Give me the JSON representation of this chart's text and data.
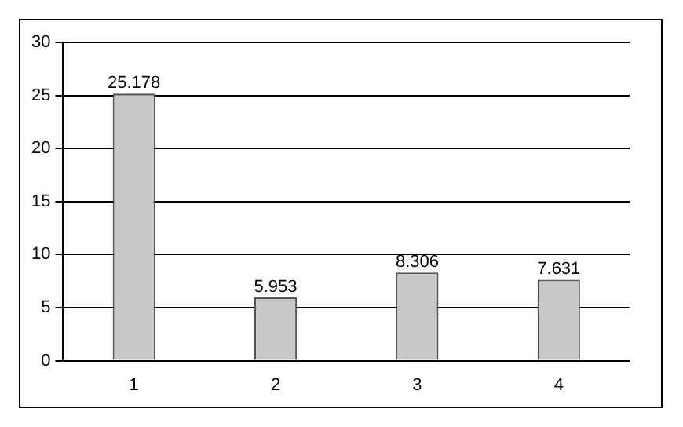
{
  "chart_data": {
    "type": "bar",
    "categories": [
      "1",
      "2",
      "3",
      "4"
    ],
    "values": [
      25.178,
      5.953,
      8.306,
      7.631
    ],
    "color": "#c8c8c8",
    "ylim": [
      0,
      30
    ],
    "yticks": [
      0,
      5,
      10,
      15,
      20,
      25,
      30
    ],
    "grid": "y",
    "data_labels": true,
    "legend": false
  }
}
